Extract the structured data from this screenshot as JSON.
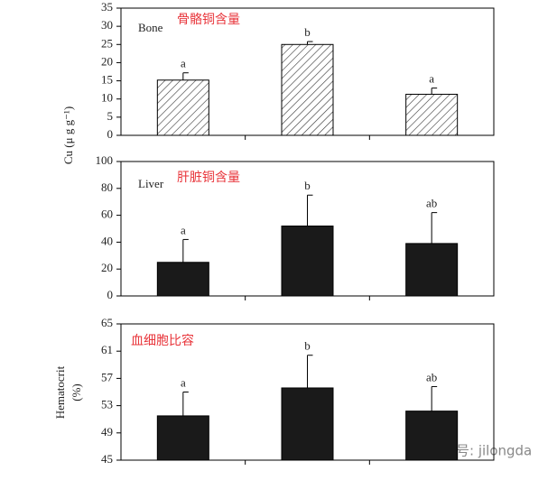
{
  "chart_data": [
    {
      "type": "bar",
      "title": "骨骼铜含量",
      "panel_label": "Bone",
      "ylabel": "Cu (μ g g⁻¹)",
      "values": [
        15.2,
        25.0,
        11.3
      ],
      "errors": [
        2.0,
        0.8,
        1.7
      ],
      "annotations": [
        "a",
        "b",
        "a"
      ],
      "color": "#ffffff",
      "pattern": "hatch",
      "title_color": "#e8343a",
      "ylim": [
        0,
        35
      ],
      "yticks": [
        0,
        5,
        10,
        15,
        20,
        25,
        30,
        35
      ]
    },
    {
      "type": "bar",
      "title": "肝脏铜含量",
      "panel_label": "Liver",
      "values": [
        25,
        52,
        39
      ],
      "errors": [
        17,
        23,
        23
      ],
      "annotations": [
        "a",
        "b",
        "ab"
      ],
      "color": "#1a1a1a",
      "title_color": "#e8343a",
      "ylim": [
        0,
        100
      ],
      "yticks": [
        0,
        20,
        40,
        60,
        80,
        100
      ]
    },
    {
      "type": "bar",
      "title": "血细胞比容",
      "ylabel": [
        "Hematocrit",
        "(%)"
      ],
      "values": [
        51.5,
        55.6,
        52.2
      ],
      "errors": [
        3.5,
        4.8,
        3.6
      ],
      "annotations": [
        "a",
        "b",
        "ab"
      ],
      "color": "#1a1a1a",
      "title_color": "#e8343a",
      "ylim": [
        45,
        65
      ],
      "yticks": [
        45,
        49,
        53,
        57,
        61,
        65
      ]
    }
  ],
  "watermark": "微信号: jilongda"
}
